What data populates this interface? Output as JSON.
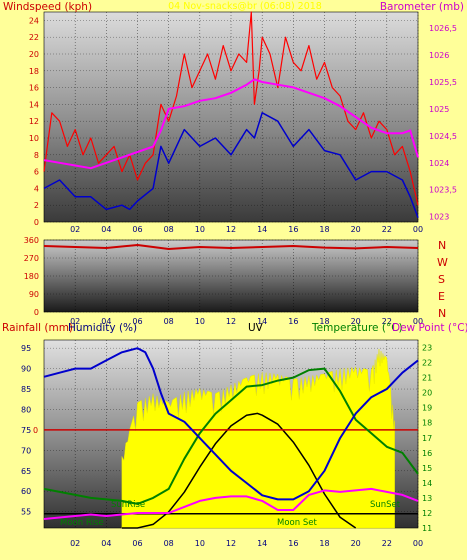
{
  "colors": {
    "background": "#ffff99",
    "wind": "#ff0000",
    "gust": "#ff0000",
    "wind_avg": "#0000cc",
    "barometer": "#ff00ff",
    "direction": "#cc0000",
    "humidity": "#0000cc",
    "temperature": "#008000",
    "dewpoint": "#ff00ff",
    "uv": "#ffff00",
    "sun_moon": "#000000",
    "axis_red": "#cc0000",
    "axis_blue": "#000080",
    "axis_magenta": "#cc00cc",
    "axis_green": "#008000"
  },
  "x_ticks": [
    "02",
    "04",
    "06",
    "08",
    "10",
    "12",
    "14",
    "16",
    "18",
    "20",
    "22",
    "00"
  ],
  "top_panel": {
    "title": "04 Nov-snacks@br (06:08) 2018",
    "left_label": "Windspeed (kph)",
    "right_label": "Barometer (mb)",
    "left_ticks": [
      "0",
      "2",
      "4",
      "6",
      "8",
      "10",
      "12",
      "14",
      "16",
      "18",
      "20",
      "22",
      "24"
    ],
    "right_ticks": [
      "1023",
      "1023,5",
      "1024",
      "1024,5",
      "1025",
      "1025,5",
      "1026",
      "1026,5"
    ]
  },
  "dir_panel": {
    "left_ticks": [
      "0",
      "90",
      "180",
      "270",
      "360"
    ],
    "compass": [
      "N",
      "W",
      "S",
      "E",
      "N"
    ]
  },
  "bottom_panel": {
    "rain_label": "Rainfall (mm)",
    "humidity_label": "Humidity (%)",
    "uv_label": "UV",
    "temp_label": "Temperature (°C)",
    "dew_label": "Dew Point (°C)",
    "humidity_ticks": [
      "55",
      "60",
      "65",
      "70",
      "75",
      "80",
      "85",
      "90",
      "95"
    ],
    "rain_tick": "0",
    "temp_ticks": [
      "11",
      "12",
      "13",
      "14",
      "15",
      "16",
      "17",
      "18",
      "19",
      "20",
      "21",
      "22",
      "23"
    ],
    "annotations": {
      "sunrise": "SunRise",
      "sunset": "SunSet",
      "moonrise": "Moon Rise",
      "moonset": "Moon Set"
    }
  },
  "chart_data": [
    {
      "type": "line",
      "x_range": [
        0,
        24
      ],
      "ylim": [
        0,
        25
      ],
      "y2lim": [
        1022.9,
        1026.8
      ],
      "series": [
        {
          "name": "Windspeed (kph)",
          "x": [
            0,
            1,
            2,
            3,
            4,
            5,
            5.5,
            6,
            7,
            7.5,
            8,
            9,
            10,
            11,
            12,
            13,
            13.5,
            14,
            15,
            16,
            17,
            18,
            19,
            20,
            21,
            22,
            23,
            23.5,
            24
          ],
          "values": [
            4,
            5,
            3,
            3,
            1.5,
            2,
            1.5,
            2.5,
            4,
            9,
            7,
            11,
            9,
            10,
            8,
            11,
            10,
            13,
            12,
            9,
            11,
            8.5,
            8,
            5,
            6,
            6,
            5,
            3,
            0.5
          ]
        },
        {
          "name": "Gust",
          "x": [
            0,
            0.5,
            1,
            1.5,
            2,
            2.5,
            3,
            3.5,
            4,
            4.5,
            5,
            5.5,
            6,
            6.5,
            7,
            7.5,
            8,
            8.5,
            9,
            9.5,
            10,
            10.5,
            11,
            11.5,
            12,
            12.5,
            13,
            13.3,
            13.5,
            13.8,
            14,
            14.5,
            15,
            15.5,
            16,
            16.5,
            17,
            17.5,
            18,
            18.5,
            19,
            19.5,
            20,
            20.5,
            21,
            21.5,
            22,
            22.5,
            23,
            23.5,
            24
          ],
          "values": [
            6,
            13,
            12,
            9,
            11,
            8,
            10,
            7,
            8,
            9,
            6,
            8,
            5,
            7,
            8,
            14,
            12,
            15,
            20,
            16,
            18,
            20,
            17,
            21,
            18,
            20,
            19,
            25,
            14,
            18,
            22,
            20,
            16,
            22,
            19,
            18,
            21,
            17,
            19,
            16,
            15,
            12,
            11,
            13,
            10,
            12,
            11,
            8,
            9,
            6,
            2
          ]
        },
        {
          "name": "Barometer (mb)",
          "x": [
            0,
            1,
            2,
            3,
            4,
            5,
            6,
            7,
            7.5,
            8,
            9,
            10,
            11,
            12,
            13,
            13.5,
            14,
            15,
            16,
            17,
            18,
            19,
            20,
            21,
            22,
            23,
            23.5,
            24
          ],
          "values": [
            1024.05,
            1024.0,
            1023.95,
            1023.9,
            1024.0,
            1024.1,
            1024.2,
            1024.3,
            1024.6,
            1025.0,
            1025.05,
            1025.15,
            1025.2,
            1025.3,
            1025.45,
            1025.55,
            1025.5,
            1025.45,
            1025.4,
            1025.3,
            1025.2,
            1025.05,
            1024.85,
            1024.65,
            1024.55,
            1024.55,
            1024.6,
            1024.1
          ]
        }
      ]
    },
    {
      "type": "line",
      "x_range": [
        0,
        24
      ],
      "ylim": [
        0,
        360
      ],
      "series": [
        {
          "name": "Wind Direction",
          "x": [
            0,
            2,
            4,
            6,
            8,
            10,
            12,
            14,
            16,
            18,
            20,
            22,
            24
          ],
          "values": [
            330,
            325,
            320,
            335,
            315,
            325,
            320,
            325,
            330,
            322,
            318,
            325,
            320
          ]
        }
      ]
    },
    {
      "type": "line",
      "x_range": [
        0,
        24
      ],
      "ylim": [
        51,
        97
      ],
      "y2lim": [
        11,
        23.5
      ],
      "series": [
        {
          "name": "Humidity (%)",
          "x": [
            0,
            1,
            2,
            3,
            4,
            5,
            6,
            6.5,
            7,
            7.5,
            8,
            9,
            10,
            11,
            12,
            13,
            14,
            15,
            16,
            17,
            18,
            19,
            20,
            21,
            22,
            23,
            24
          ],
          "values": [
            88,
            89,
            90,
            90,
            92,
            94,
            95,
            94,
            90,
            84,
            79,
            77,
            73,
            69,
            65,
            62,
            59,
            58,
            58,
            60,
            65,
            73,
            79,
            83,
            85,
            89,
            92
          ]
        },
        {
          "name": "Temperature (°C)",
          "x": [
            0,
            1,
            2,
            3,
            4,
            5,
            6,
            7,
            8,
            9,
            10,
            11,
            12,
            13,
            14,
            15,
            16,
            17,
            18,
            19,
            20,
            21,
            22,
            23,
            24
          ],
          "values": [
            13.6,
            13.4,
            13.2,
            13.0,
            12.9,
            12.8,
            12.6,
            13.0,
            13.6,
            15.6,
            17.3,
            18.6,
            19.5,
            20.4,
            20.5,
            20.8,
            21.0,
            21.5,
            21.6,
            20.1,
            18.2,
            17.3,
            16.4,
            16.0,
            14.6
          ]
        },
        {
          "name": "Dew Point (°C)",
          "x": [
            0,
            1,
            2,
            3,
            4,
            5,
            6,
            7,
            8,
            9,
            10,
            11,
            12,
            13,
            14,
            15,
            16,
            17,
            18,
            19,
            20,
            21,
            22,
            23,
            24
          ],
          "values": [
            11.6,
            11.7,
            11.8,
            11.9,
            11.8,
            11.9,
            12.0,
            12.0,
            12.0,
            12.4,
            12.8,
            13.0,
            13.1,
            13.1,
            12.8,
            12.2,
            12.2,
            13.2,
            13.5,
            13.4,
            13.5,
            13.6,
            13.4,
            13.2,
            12.8
          ]
        },
        {
          "name": "UV",
          "x": [
            5,
            6,
            7,
            8,
            9,
            10,
            11,
            12,
            13,
            14,
            15,
            16,
            17,
            18,
            19,
            20,
            21,
            21.5,
            22,
            22.5
          ],
          "values": [
            4.0,
            7.0,
            7.5,
            7.0,
            7.6,
            7.8,
            7.5,
            8.0,
            8.4,
            8.7,
            8.6,
            8.3,
            8.5,
            8.6,
            8.9,
            9.0,
            8.8,
            10.0,
            9.5,
            6.0
          ]
        },
        {
          "name": "Sun",
          "x": [
            5,
            6,
            7,
            8,
            9,
            10,
            11,
            12,
            13,
            13.7,
            14,
            15,
            16,
            17,
            18,
            19,
            20
          ],
          "values": [
            0,
            0,
            0.2,
            0.9,
            2.0,
            3.4,
            4.7,
            5.7,
            6.3,
            6.4,
            6.3,
            5.8,
            4.8,
            3.5,
            1.9,
            0.6,
            0
          ]
        },
        {
          "name": "Moon",
          "x": [
            0,
            5,
            6,
            7,
            8,
            9,
            10,
            11,
            12,
            13,
            14,
            15,
            16,
            17,
            18,
            19,
            20,
            21,
            22,
            23,
            24
          ],
          "values": [
            0.8,
            0.8,
            0.8,
            0.8,
            0.8,
            0.8,
            0.8,
            0.8,
            0.8,
            0.8,
            0.8,
            0.8,
            0.8,
            0.8,
            0.8,
            0.8,
            0.8,
            0.8,
            0.8,
            0.8,
            0.8
          ]
        }
      ]
    }
  ]
}
